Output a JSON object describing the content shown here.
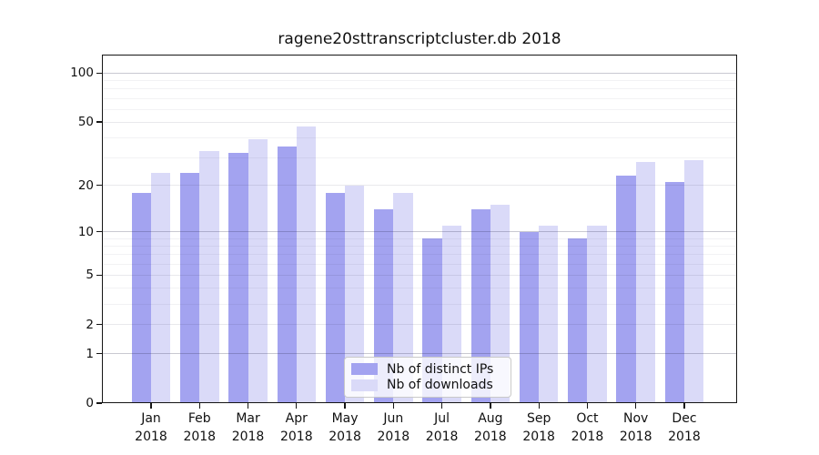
{
  "title": "ragene20sttranscriptcluster.db 2018",
  "chart_data": {
    "type": "bar",
    "title": "ragene20sttranscriptcluster.db 2018",
    "categories": [
      "Jan",
      "Feb",
      "Mar",
      "Apr",
      "May",
      "Jun",
      "Jul",
      "Aug",
      "Sep",
      "Oct",
      "Nov",
      "Dec"
    ],
    "x_year": "2018",
    "series": [
      {
        "key": "ips",
        "name": "Nb of distinct IPs",
        "color": "#a3a3f0",
        "values": [
          18,
          24,
          32,
          35,
          18,
          14,
          9,
          14,
          10,
          9,
          23,
          21
        ]
      },
      {
        "key": "downloads",
        "name": "Nb of downloads",
        "color": "#dadaf8",
        "values": [
          24,
          33,
          39,
          47,
          20,
          18,
          11,
          15,
          11,
          11,
          28,
          29
        ]
      }
    ],
    "yscale": "log10(value+1)",
    "ylim": [
      0,
      130
    ],
    "yticks": [
      0,
      1,
      2,
      5,
      10,
      20,
      50,
      100
    ],
    "gridlines": {
      "major": [
        1,
        10,
        100
      ],
      "mid": [
        2,
        5,
        20,
        50
      ],
      "minor": [
        3,
        4,
        6,
        7,
        8,
        9,
        30,
        40,
        60,
        70,
        80,
        90
      ]
    },
    "legend": {
      "position": "bottom-center"
    },
    "grid": true
  },
  "colors": {
    "background": "#ffffff",
    "axis": "#151515",
    "series_ips": "#a3a3f0",
    "series_downloads": "#dadaf8",
    "legend_border": "#c9c9c9"
  }
}
